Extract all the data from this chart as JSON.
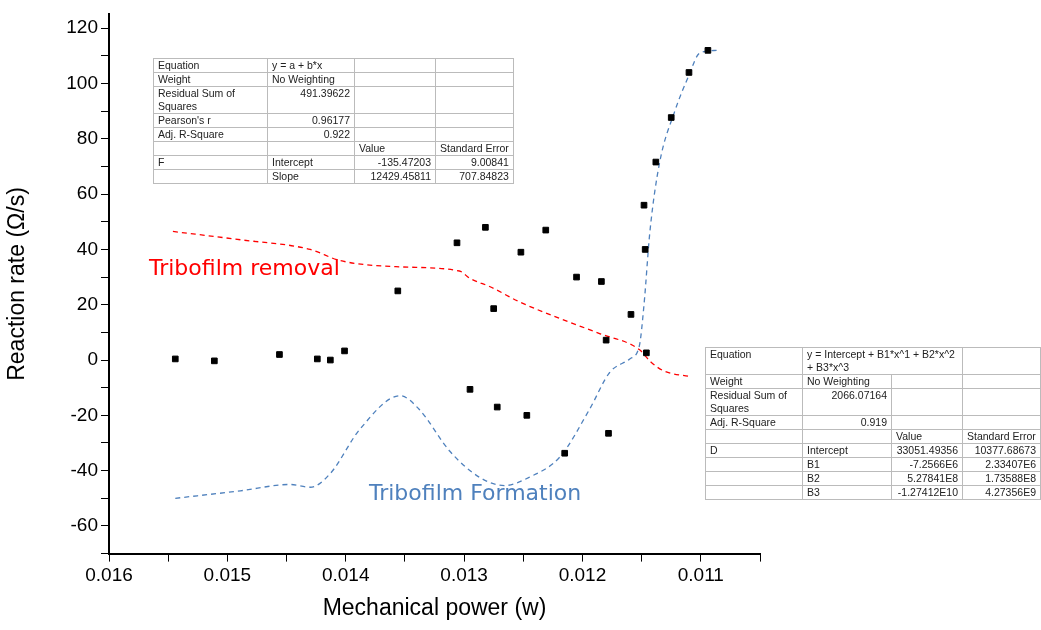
{
  "chart_data": {
    "type": "scatter",
    "xlabel": "Mechanical power (w)",
    "ylabel": "Reaction rate (Ω/s)",
    "xlim": [
      0.016,
      0.0105
    ],
    "xticks": [
      0.016,
      {
        "value": 0.0155,
        "label": null
      },
      0.015,
      {
        "value": 0.0145,
        "label": null
      },
      0.014,
      {
        "value": 0.0135,
        "label": null
      },
      0.013,
      {
        "value": 0.0125,
        "label": null
      },
      0.012,
      {
        "value": 0.0115,
        "label": null
      },
      0.011,
      {
        "value": 0.0105,
        "label": null
      }
    ],
    "ylim": [
      -70,
      125
    ],
    "yticks": [
      {
        "value": -70,
        "label": null
      },
      -60,
      {
        "value": -50,
        "label": null
      },
      -40,
      {
        "value": -30,
        "label": null
      },
      -20,
      {
        "value": -10,
        "label": null
      },
      0,
      {
        "value": 10,
        "label": null
      },
      20,
      {
        "value": 30,
        "label": null
      },
      40,
      {
        "value": 50,
        "label": null
      },
      60,
      {
        "value": 70,
        "label": null
      },
      80,
      {
        "value": 90,
        "label": null
      },
      100,
      {
        "value": 110,
        "label": null
      },
      120
    ],
    "grid": false,
    "legend": false,
    "series": [
      {
        "type": "scatter",
        "color": "#000000",
        "marker": "square",
        "x": [
          0.01544,
          0.01511,
          0.01456,
          0.01424,
          0.01413,
          0.01401,
          0.01356,
          0.01306,
          0.01282,
          0.01275,
          0.01252,
          0.01231,
          0.01205,
          0.01184,
          0.0118,
          0.01159,
          0.01148,
          0.01147,
          0.01146,
          0.01138,
          0.01125,
          0.0111,
          0.01094,
          0.01295,
          0.01272,
          0.01247,
          0.01215,
          0.01178
        ],
        "values": [
          0.4,
          -0.3,
          2,
          0.4,
          0,
          3.3,
          25,
          42.4,
          48,
          18.6,
          39,
          47,
          30,
          28.4,
          7.2,
          16.5,
          56,
          40,
          2.6,
          71.6,
          87.7,
          104,
          112,
          -10.6,
          -17,
          -20,
          -33.7,
          -26.5
        ]
      },
      {
        "type": "line",
        "name": "Tribofilm removal",
        "color": "#ff0000",
        "line_style": "dashed",
        "marker": "none",
        "x": [
          0.01546,
          0.01489,
          0.0143,
          0.01405,
          0.01354,
          0.01304,
          0.01295,
          0.01278,
          0.01253,
          0.01219,
          0.01185,
          0.01152,
          0.01142,
          0.01131,
          0.01109
        ],
        "values": [
          46.5,
          43.5,
          40,
          36,
          33.7,
          32.2,
          29.5,
          26.5,
          21,
          15,
          9.5,
          3.8,
          -0.8,
          -4,
          -6
        ]
      },
      {
        "type": "line",
        "name": "Tribofilm Formation",
        "color": "#4f81bd",
        "line_style": "dashed",
        "marker": "none",
        "x": [
          0.01544,
          0.01489,
          0.01447,
          0.0143,
          0.01413,
          0.01388,
          0.01354,
          0.01338,
          0.01312,
          0.01287,
          0.01266,
          0.01245,
          0.01219,
          0.01194,
          0.01177,
          0.0116,
          0.01152,
          0.01148,
          0.01143,
          0.01135,
          0.01122,
          0.0111,
          0.01101,
          0.01086
        ],
        "values": [
          -50,
          -47.3,
          -45,
          -46,
          -41,
          -25,
          -12.9,
          -17.8,
          -33,
          -42.4,
          -45.4,
          -42.4,
          -35,
          -17.8,
          -4.5,
          0.4,
          5,
          20,
          46.5,
          71,
          90,
          103,
          111,
          112
        ]
      }
    ],
    "annotations": [
      "Equation\ty = a + b*x\t\t\nWeight\tNo Weighting\t\t\nResidual Sum of Squares\t491.39622\t\t\nPearson's r\t0.96177\t\t\nAdj. R-Square\t0.922\t\t\n\t\tValue\tStandard Error\nF\tIntercept\t-135.47203\t9.00841\n\tSlope\t12429.45811\t707.84823",
      "Equation\ty = Intercept + B1*x^1 + B2*x^2 + B3*x^3\t\t\nWeight\tNo Weighting\t\t\nResidual Sum of Squares\t2066.07164\t\t\nAdj. R-Square\t0.919\t\t\n\t\tValue\tStandard Error\nD\tIntercept\t33051.49356\t10377.68673\n\tB1\t-7.2566E6\t2.33407E6\n\tB2\t5.27841E8\t1.73588E8\n\tB3\t-1.27412E10\t4.27356E9"
    ]
  }
}
